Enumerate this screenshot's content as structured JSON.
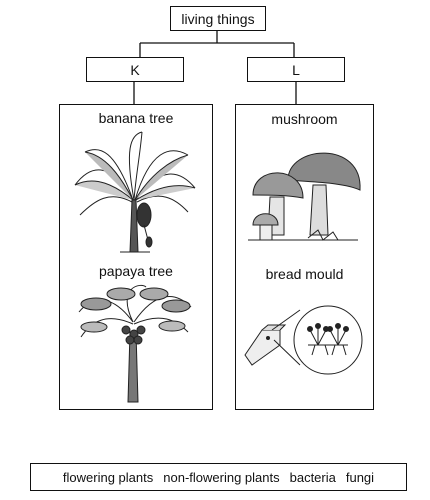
{
  "root": {
    "label": "living things"
  },
  "groups": [
    {
      "label": "K",
      "items": [
        "banana tree",
        "papaya tree"
      ]
    },
    {
      "label": "L",
      "items": [
        "mushroom",
        "bread mould"
      ]
    }
  ],
  "options": [
    "flowering plants",
    "non-flowering plants",
    "bacteria",
    "fungi"
  ]
}
